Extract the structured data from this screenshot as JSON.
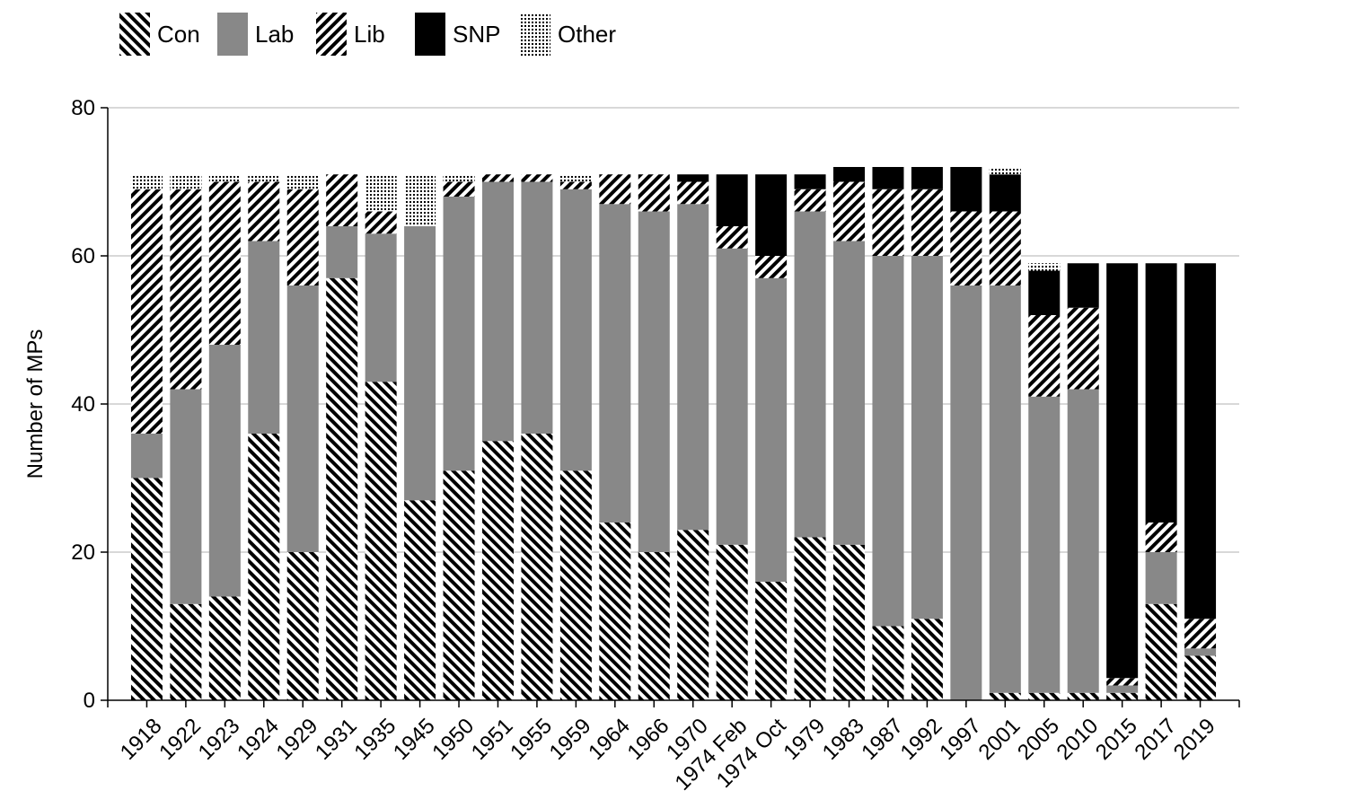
{
  "chart_data": {
    "type": "bar",
    "stacked": true,
    "ylabel": "Number of MPs",
    "xlabel": "",
    "ylim": [
      0,
      80
    ],
    "yticks": [
      0,
      20,
      40,
      60,
      80
    ],
    "grid": "horizontal",
    "legend_position": "top-left",
    "categories": [
      "1918",
      "1922",
      "1923",
      "1924",
      "1929",
      "1931",
      "1935",
      "1945",
      "1950",
      "1951",
      "1955",
      "1959",
      "1964",
      "1966",
      "1970",
      "1974 Feb",
      "1974 Oct",
      "1979",
      "1983",
      "1987",
      "1992",
      "1997",
      "2001",
      "2005",
      "2010",
      "2015",
      "2017",
      "2019"
    ],
    "series": [
      {
        "name": "Con",
        "pattern": "back-diagonal-hatch",
        "color": "#000000",
        "values": [
          30,
          13,
          14,
          36,
          20,
          57,
          43,
          27,
          31,
          35,
          36,
          31,
          24,
          20,
          23,
          21,
          16,
          22,
          21,
          10,
          11,
          0,
          1,
          1,
          1,
          1,
          13,
          6
        ]
      },
      {
        "name": "Lab",
        "pattern": "solid",
        "color": "#888888",
        "values": [
          6,
          29,
          34,
          26,
          36,
          7,
          20,
          37,
          37,
          35,
          34,
          38,
          43,
          46,
          44,
          40,
          41,
          44,
          41,
          50,
          49,
          56,
          55,
          40,
          41,
          1,
          7,
          1
        ]
      },
      {
        "name": "Lib",
        "pattern": "forward-diagonal-hatch",
        "color": "#000000",
        "values": [
          33,
          27,
          22,
          8,
          13,
          7,
          3,
          0,
          2,
          1,
          1,
          1,
          4,
          5,
          3,
          3,
          3,
          3,
          8,
          9,
          9,
          10,
          10,
          11,
          11,
          1,
          4,
          4
        ]
      },
      {
        "name": "SNP",
        "pattern": "solid",
        "color": "#000000",
        "values": [
          0,
          0,
          0,
          0,
          0,
          0,
          0,
          0,
          0,
          0,
          0,
          0,
          0,
          0,
          1,
          7,
          11,
          2,
          2,
          3,
          3,
          6,
          5,
          6,
          6,
          56,
          35,
          48
        ]
      },
      {
        "name": "Other",
        "pattern": "dots",
        "color": "#000000",
        "values": [
          2,
          2,
          1,
          1,
          2,
          0,
          5,
          7,
          1,
          0,
          0,
          1,
          0,
          0,
          0,
          0,
          0,
          0,
          0,
          0,
          0,
          0,
          1,
          1,
          0,
          0,
          0,
          0
        ]
      }
    ]
  }
}
